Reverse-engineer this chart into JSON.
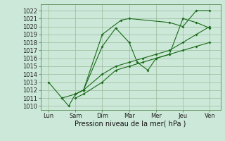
{
  "xlabel": "Pression niveau de la mer( hPa )",
  "background_color": "#cce8d8",
  "grid_color": "#99bb99",
  "line_color": "#1a6b1a",
  "x_labels": [
    "Lun",
    "Sam",
    "Dim",
    "Mar",
    "Mer",
    "Jeu",
    "Ven"
  ],
  "x_positions": [
    0,
    1,
    2,
    3,
    4,
    5,
    6
  ],
  "ylim": [
    1009.5,
    1022.8
  ],
  "yticks": [
    1010,
    1011,
    1012,
    1013,
    1014,
    1015,
    1016,
    1017,
    1018,
    1019,
    1020,
    1021,
    1022
  ],
  "line1_x": [
    0,
    0.5,
    1.0,
    1.3,
    2.0,
    2.7,
    3.0,
    4.5,
    5.0,
    5.5,
    6.0
  ],
  "line1_y": [
    1013,
    1011,
    1011.5,
    1012,
    1019,
    1020.8,
    1021,
    1020.5,
    1020,
    1022,
    1022
  ],
  "line2_x": [
    0.5,
    0.75,
    1.0,
    1.3,
    2.0,
    2.5,
    3.0,
    3.3,
    3.7,
    4.0,
    4.5,
    5.0,
    5.5,
    6.0
  ],
  "line2_y": [
    1011,
    1010,
    1011.5,
    1012,
    1017.5,
    1019.8,
    1018,
    1015.5,
    1014.5,
    1016,
    1016.5,
    1021,
    1020.5,
    1019.8
  ],
  "line3_x": [
    1.0,
    1.3,
    2.0,
    2.5,
    3.0,
    3.5,
    4.0,
    4.5,
    5.0,
    5.5,
    6.0
  ],
  "line3_y": [
    1011.5,
    1012,
    1014,
    1015,
    1015.5,
    1016,
    1016.5,
    1017,
    1018,
    1019,
    1020
  ],
  "line4_x": [
    1.0,
    1.3,
    2.0,
    2.5,
    3.0,
    3.5,
    4.0,
    4.5,
    5.0,
    5.5,
    6.0
  ],
  "line4_y": [
    1011,
    1011.5,
    1013,
    1014.5,
    1015.0,
    1015.5,
    1016.0,
    1016.5,
    1017.0,
    1017.5,
    1018
  ],
  "label_fontsize": 6,
  "xlabel_fontsize": 7,
  "marker_size": 2,
  "line_width": 0.8
}
